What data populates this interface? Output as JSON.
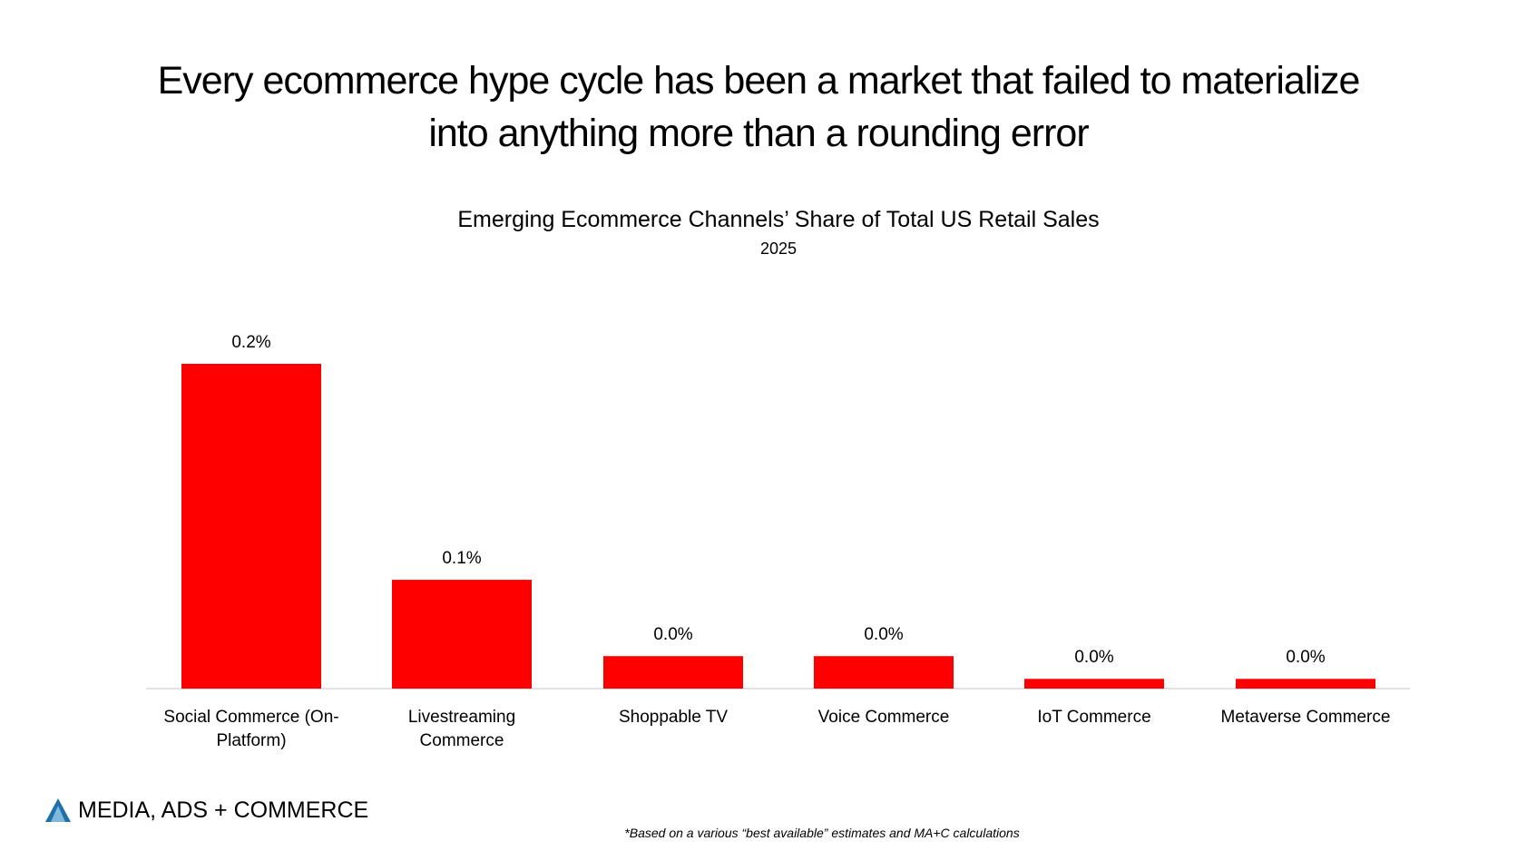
{
  "chart_data": {
    "type": "bar",
    "title": "Every ecommerce hype cycle has been a market that failed to materialize into anything more than a rounding error",
    "subtitle": "Emerging Ecommerce Channels’ Share of Total US Retail Sales",
    "period": "2025",
    "categories": [
      "Social Commerce (On-Platform)",
      "Livestreaming Commerce",
      "Shoppable TV",
      "Voice Commerce",
      "IoT Commerce",
      "Metaverse Commerce"
    ],
    "values": [
      0.2,
      0.067,
      0.02,
      0.02,
      0.006,
      0.006
    ],
    "value_labels": [
      "0.2%",
      "0.1%",
      "0.0%",
      "0.0%",
      "0.0%",
      "0.0%"
    ],
    "color": "#ff0000",
    "brand": "MEDIA, ADS + COMMERCE",
    "footnote": "*Based on a various “best available” estimates and MA+C calculations"
  }
}
